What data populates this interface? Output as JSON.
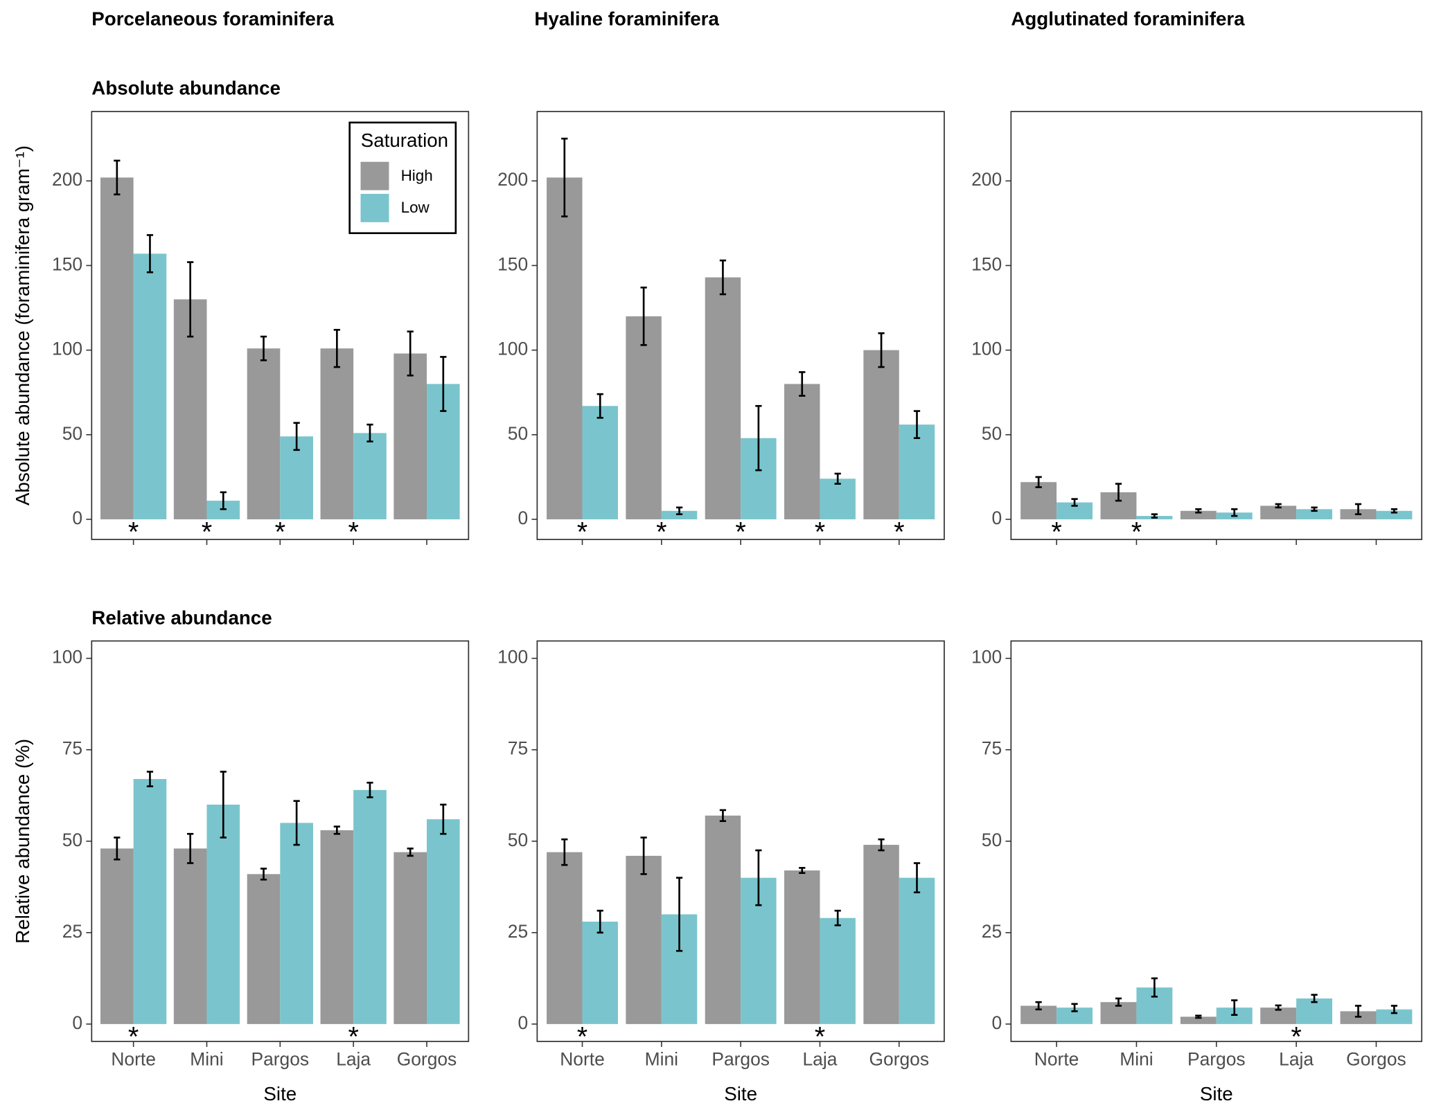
{
  "chart_data": [
    {
      "type": "bar",
      "title": "Porcelaneous foraminifera",
      "subtitle": "Absolute abundance",
      "y_label": "Absolute abundance (foraminifera gram⁻¹)",
      "categories": [
        null,
        null,
        null,
        null,
        null
      ],
      "series": [
        {
          "name": "High",
          "color": "#999999",
          "values": [
            202,
            130,
            101,
            101,
            98
          ],
          "errors": [
            10,
            22,
            7,
            11,
            13
          ]
        },
        {
          "name": "Low",
          "color": "#7ac5cd",
          "values": [
            157,
            11,
            49,
            51,
            80
          ],
          "errors": [
            11,
            5,
            8,
            5,
            16
          ]
        }
      ],
      "markers": [
        "*",
        "*",
        "*",
        "*",
        null
      ],
      "ylim": [
        -11.9,
        241
      ],
      "yticks": [
        0,
        50,
        100,
        150,
        200
      ],
      "legend": {
        "title": "Saturation",
        "position": "top-right"
      }
    },
    {
      "type": "bar",
      "title": "Hyaline foraminifera",
      "categories": [
        null,
        null,
        null,
        null,
        null
      ],
      "series": [
        {
          "color": "#999999",
          "values": [
            202,
            120,
            143,
            80,
            100
          ],
          "errors": [
            23,
            17,
            10,
            7,
            10
          ]
        },
        {
          "color": "#7ac5cd",
          "values": [
            67,
            5,
            48,
            24,
            56
          ],
          "errors": [
            7,
            2,
            19,
            3,
            8
          ]
        }
      ],
      "markers": [
        "*",
        "*",
        "*",
        "*",
        "*"
      ],
      "ylim": [
        -11.9,
        241
      ],
      "yticks": [
        0,
        50,
        100,
        150,
        200
      ]
    },
    {
      "type": "bar",
      "title": "Agglutinated foraminifera",
      "categories": [
        null,
        null,
        null,
        null,
        null
      ],
      "series": [
        {
          "color": "#999999",
          "values": [
            22,
            16,
            5,
            8,
            6
          ],
          "errors": [
            3,
            5,
            1,
            1,
            3
          ]
        },
        {
          "color": "#7ac5cd",
          "values": [
            10,
            2,
            4,
            6,
            5
          ],
          "errors": [
            2,
            1,
            2,
            1,
            1
          ]
        }
      ],
      "markers": [
        "*",
        "*",
        null,
        null,
        null
      ],
      "ylim": [
        -11.9,
        241
      ],
      "yticks": [
        0,
        50,
        100,
        150,
        200
      ]
    },
    {
      "type": "bar",
      "subtitle": "Relative abundance",
      "y_label": "Relative abundance (%)",
      "x_label": "Site",
      "categories": [
        "Norte",
        "Mini",
        "Pargos",
        "Laja",
        "Gorgos"
      ],
      "series": [
        {
          "color": "#999999",
          "values": [
            48,
            48,
            41,
            53,
            47
          ],
          "errors": [
            3,
            4,
            1.5,
            1,
            1
          ]
        },
        {
          "color": "#7ac5cd",
          "values": [
            67,
            60,
            55,
            64,
            56
          ],
          "errors": [
            2,
            9,
            6,
            2,
            4
          ]
        }
      ],
      "markers": [
        "*",
        null,
        null,
        "*",
        null
      ],
      "ylim": [
        -4.75,
        104.75
      ],
      "yticks": [
        0,
        25,
        50,
        75,
        100
      ]
    },
    {
      "type": "bar",
      "x_label": "Site",
      "categories": [
        "Norte",
        "Mini",
        "Pargos",
        "Laja",
        "Gorgos"
      ],
      "series": [
        {
          "color": "#999999",
          "values": [
            47,
            46,
            57,
            42,
            49
          ],
          "errors": [
            3.5,
            5,
            1.5,
            0.7,
            1.5
          ]
        },
        {
          "color": "#7ac5cd",
          "values": [
            28,
            30,
            40,
            29,
            40
          ],
          "errors": [
            3,
            10,
            7.5,
            2,
            4
          ]
        }
      ],
      "markers": [
        "*",
        null,
        null,
        "*",
        null
      ],
      "ylim": [
        -4.75,
        104.75
      ],
      "yticks": [
        0,
        25,
        50,
        75,
        100
      ]
    },
    {
      "type": "bar",
      "x_label": "Site",
      "categories": [
        "Norte",
        "Mini",
        "Pargos",
        "Laja",
        "Gorgos"
      ],
      "series": [
        {
          "color": "#999999",
          "values": [
            5,
            6,
            2,
            4.5,
            3.5
          ],
          "errors": [
            1,
            1,
            0.3,
            0.6,
            1.5
          ]
        },
        {
          "color": "#7ac5cd",
          "values": [
            4.5,
            10,
            4.5,
            7,
            4
          ],
          "errors": [
            1,
            2.5,
            2,
            1,
            1
          ]
        }
      ],
      "markers": [
        null,
        null,
        null,
        "*",
        null
      ],
      "ylim": [
        -4.75,
        104.75
      ],
      "yticks": [
        0,
        25,
        50,
        75,
        100
      ]
    }
  ]
}
